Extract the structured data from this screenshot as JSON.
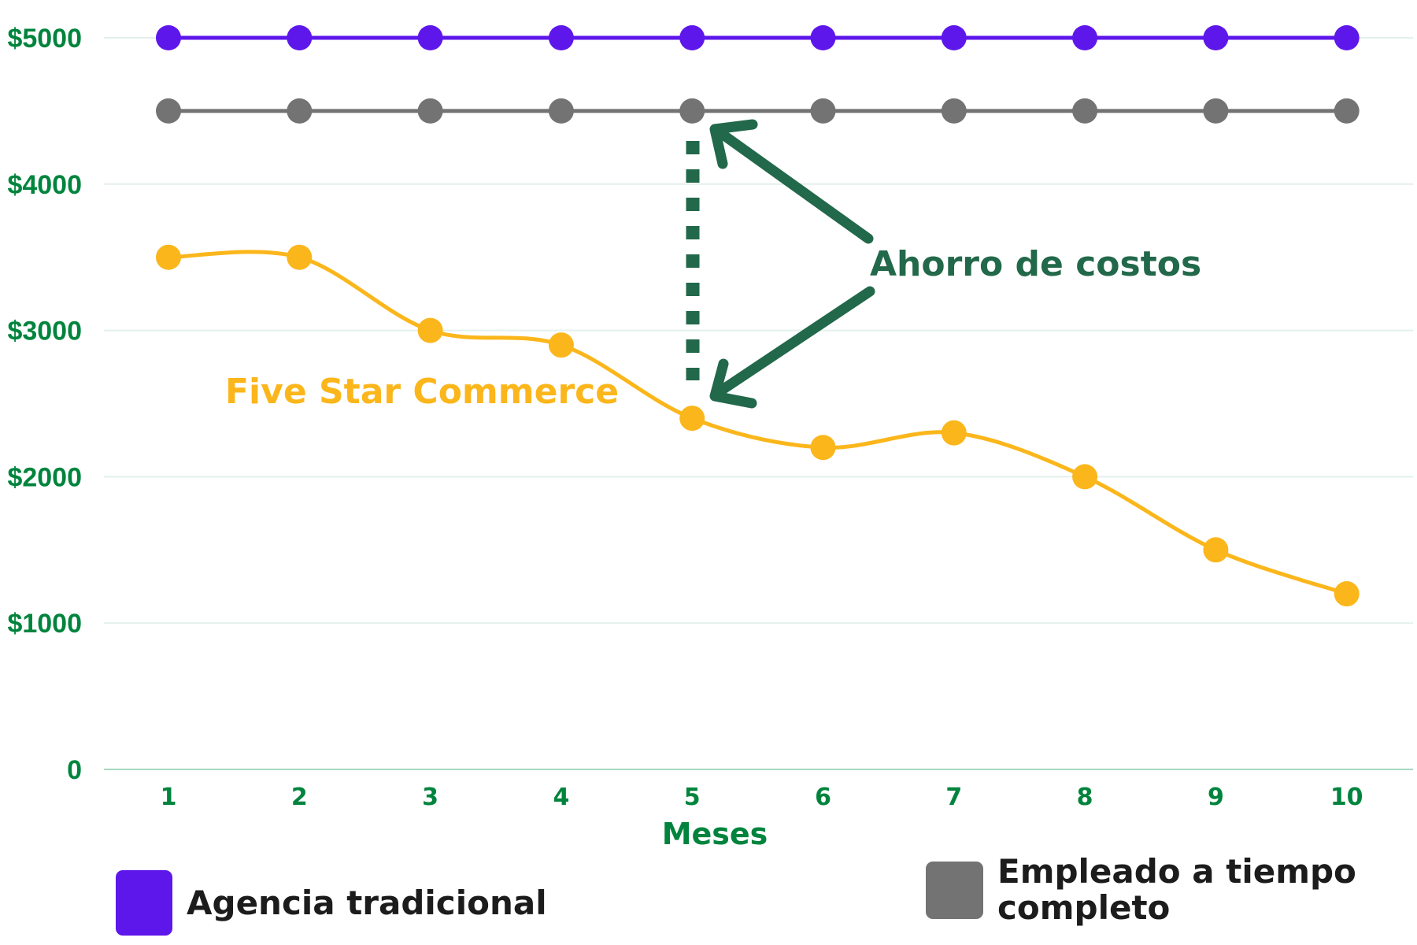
{
  "chart_data": {
    "type": "line",
    "title": "",
    "xlabel": "Meses",
    "ylabel": "",
    "x": [
      1,
      2,
      3,
      4,
      5,
      6,
      7,
      8,
      9,
      10
    ],
    "xtick_labels": [
      "1",
      "2",
      "3",
      "4",
      "5",
      "6",
      "7",
      "8",
      "9",
      "10"
    ],
    "ylim": [
      0,
      5000
    ],
    "yticks": [
      0,
      1000,
      2000,
      3000,
      4000,
      5000
    ],
    "ytick_labels": [
      "0",
      "$1000",
      "$2000",
      "$3000",
      "$4000",
      "$5000"
    ],
    "grid": "horizontal",
    "legend_position": "bottom",
    "series": [
      {
        "name": "Agencia tradicional",
        "color": "#5E17EB",
        "smooth": false,
        "values": [
          5000,
          5000,
          5000,
          5000,
          5000,
          5000,
          5000,
          5000,
          5000,
          5000
        ]
      },
      {
        "name": "Empleado a tiempo completo",
        "color": "#737373",
        "smooth": false,
        "values": [
          4500,
          4500,
          4500,
          4500,
          4500,
          4500,
          4500,
          4500,
          4500,
          4500
        ]
      },
      {
        "name": "Five Star Commerce",
        "color": "#FBB61B",
        "smooth": true,
        "values": [
          3500,
          3500,
          3000,
          2900,
          2400,
          2200,
          2300,
          2000,
          1500,
          1200
        ]
      }
    ],
    "annotations": [
      {
        "text": "Five Star Commerce",
        "color": "#FBB61B"
      },
      {
        "text": "Ahorro de costos",
        "color": "#22684A",
        "arrows_to": [
          [
            5,
            4500
          ],
          [
            5,
            2400
          ]
        ]
      }
    ]
  },
  "colors": {
    "tick_green": "#00843D",
    "annotation_green": "#22684A",
    "gridline": "#E3F0EC",
    "baseline": "#A8D8C0"
  },
  "legend": {
    "items": [
      {
        "label": "Agencia tradicional",
        "color": "#5E17EB"
      },
      {
        "label": "Empleado a tiempo completo",
        "color": "#737373"
      }
    ]
  }
}
